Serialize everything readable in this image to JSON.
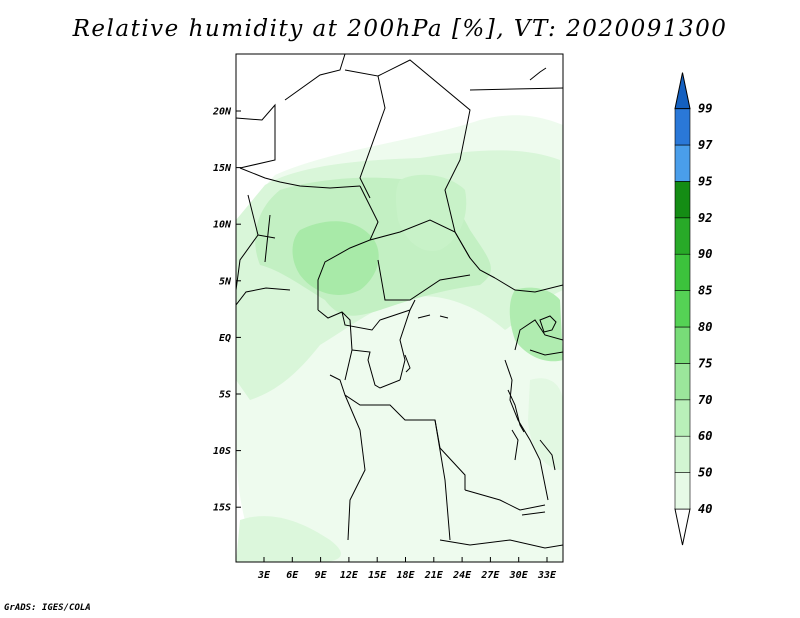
{
  "title": "Relative humidity at 200hPa [%], VT: 2020091300",
  "credit": "GrADS: IGES/COLA",
  "map": {
    "lat_labels": [
      "20N",
      "15N",
      "10N",
      "5N",
      "EQ",
      "5S",
      "10S",
      "15S"
    ],
    "lon_labels": [
      "3E",
      "6E",
      "9E",
      "12E",
      "15E",
      "18E",
      "21E",
      "24E",
      "27E",
      "30E",
      "33E"
    ]
  },
  "colorbar": {
    "levels": [
      "40",
      "50",
      "60",
      "70",
      "75",
      "80",
      "85",
      "90",
      "92",
      "95",
      "97",
      "99"
    ],
    "colors": [
      "#ffffff",
      "#e6fae6",
      "#d2f5d2",
      "#b9f0b9",
      "#9be69b",
      "#78dc78",
      "#55d255",
      "#3cc33c",
      "#28aa28",
      "#148c14",
      "#4a9eea",
      "#2a78d8",
      "#1460c0"
    ]
  }
}
